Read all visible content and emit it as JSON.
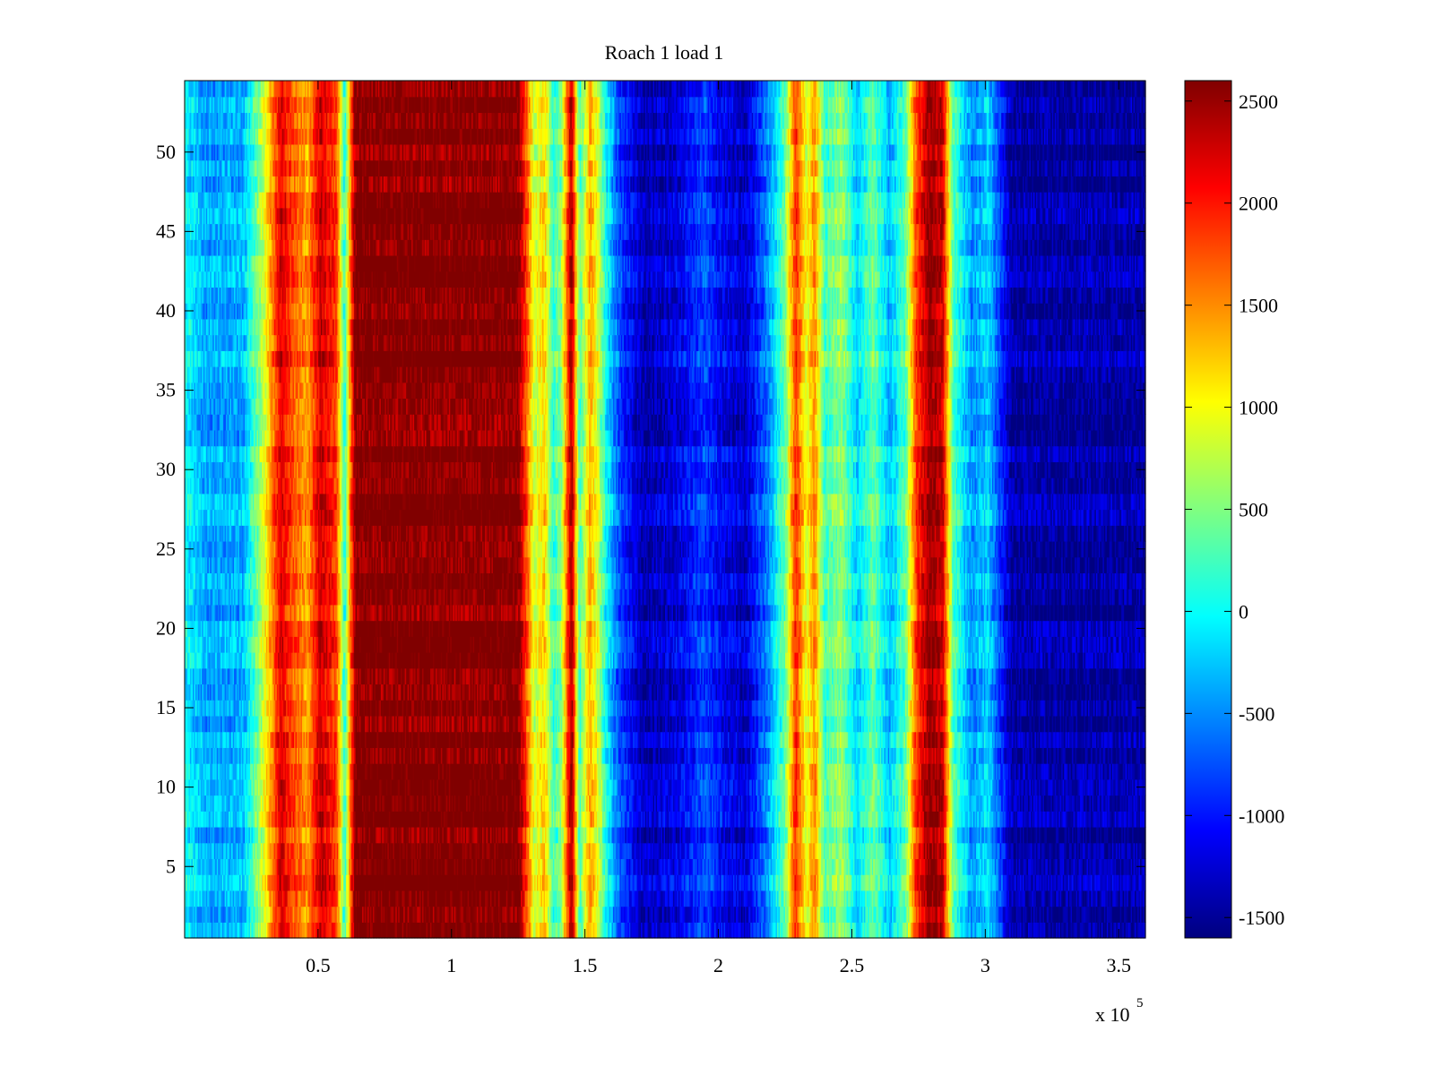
{
  "chart_data": {
    "type": "heatmap",
    "title": "Roach 1 load 1",
    "xlabel": "",
    "ylabel": "",
    "x_exponent_label": "x 10",
    "x_exponent_power": "5",
    "x_multiplier": 100000,
    "xlim": [
      0,
      3.6
    ],
    "ylim": [
      0.5,
      54.5
    ],
    "x_ticks": [
      0.5,
      1,
      1.5,
      2,
      2.5,
      3,
      3.5
    ],
    "x_tick_labels": [
      "0.5",
      "1",
      "1.5",
      "2",
      "2.5",
      "3",
      "3.5"
    ],
    "y_ticks": [
      5,
      10,
      15,
      20,
      25,
      30,
      35,
      40,
      45,
      50
    ],
    "y_tick_labels": [
      "5",
      "10",
      "15",
      "20",
      "25",
      "30",
      "35",
      "40",
      "45",
      "50"
    ],
    "rows": 54,
    "colormap": "jet",
    "clim": [
      -1600,
      2600
    ],
    "colorbar_ticks": [
      -1500,
      -1000,
      -500,
      0,
      500,
      1000,
      1500,
      2000,
      2500
    ],
    "colorbar_tick_labels": [
      "-1500",
      "-1000",
      "-500",
      "0",
      "500",
      "1000",
      "1500",
      "2000",
      "2500"
    ],
    "column_profile": [
      {
        "x": 0.0,
        "value": 0
      },
      {
        "x": 0.08,
        "value": -400
      },
      {
        "x": 0.22,
        "value": -350
      },
      {
        "x": 0.3,
        "value": 900
      },
      {
        "x": 0.36,
        "value": 2200
      },
      {
        "x": 0.4,
        "value": 1800
      },
      {
        "x": 0.46,
        "value": 1400
      },
      {
        "x": 0.51,
        "value": 2300
      },
      {
        "x": 0.57,
        "value": 1800
      },
      {
        "x": 0.6,
        "value": 100
      },
      {
        "x": 0.62,
        "value": 1500
      },
      {
        "x": 0.64,
        "value": 2600
      },
      {
        "x": 1.25,
        "value": 2600
      },
      {
        "x": 1.29,
        "value": 1500
      },
      {
        "x": 1.31,
        "value": 800
      },
      {
        "x": 1.35,
        "value": 1200
      },
      {
        "x": 1.38,
        "value": 200
      },
      {
        "x": 1.41,
        "value": 500
      },
      {
        "x": 1.45,
        "value": 2500
      },
      {
        "x": 1.48,
        "value": 200
      },
      {
        "x": 1.52,
        "value": 1400
      },
      {
        "x": 1.55,
        "value": 800
      },
      {
        "x": 1.58,
        "value": 0
      },
      {
        "x": 1.63,
        "value": -800
      },
      {
        "x": 1.72,
        "value": -1400
      },
      {
        "x": 1.85,
        "value": -1200
      },
      {
        "x": 1.95,
        "value": -800
      },
      {
        "x": 2.0,
        "value": -1100
      },
      {
        "x": 2.1,
        "value": -1300
      },
      {
        "x": 2.18,
        "value": -600
      },
      {
        "x": 2.25,
        "value": 400
      },
      {
        "x": 2.29,
        "value": 1900
      },
      {
        "x": 2.33,
        "value": 900
      },
      {
        "x": 2.36,
        "value": 1500
      },
      {
        "x": 2.4,
        "value": 200
      },
      {
        "x": 2.46,
        "value": 600
      },
      {
        "x": 2.52,
        "value": -200
      },
      {
        "x": 2.58,
        "value": 400
      },
      {
        "x": 2.64,
        "value": -300
      },
      {
        "x": 2.7,
        "value": 300
      },
      {
        "x": 2.74,
        "value": 1800
      },
      {
        "x": 2.79,
        "value": 2500
      },
      {
        "x": 2.84,
        "value": 2300
      },
      {
        "x": 2.88,
        "value": 300
      },
      {
        "x": 2.95,
        "value": -500
      },
      {
        "x": 3.01,
        "value": -200
      },
      {
        "x": 3.06,
        "value": -900
      },
      {
        "x": 3.1,
        "value": -1450
      },
      {
        "x": 3.6,
        "value": -1450
      }
    ],
    "cell_noise": 450,
    "column_width": 0.005
  }
}
